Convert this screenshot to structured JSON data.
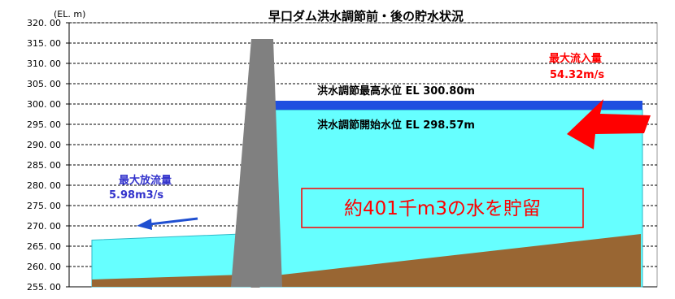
{
  "title": "早口ダム洪水調節前・後の貯水状況",
  "y_unit": "(EL. m)",
  "colors": {
    "water": "#66ffff",
    "water_border": "#2fb8c8",
    "flood_band": "#1f4fe0",
    "ground": "#996633",
    "dam": "#808080",
    "red": "#ff0000",
    "blue_text": "#3333cc",
    "outflow_arrow": "#1f4fd0"
  },
  "labels": {
    "max_water_level": "洪水調節最高水位 EL 300.80m",
    "start_water_level": "洪水調節開始水位 EL 298.57m",
    "max_inflow_title": "最大流入量",
    "max_inflow_value": "54.32m/s",
    "max_outflow_title": "最大放流量",
    "max_outflow_value": "5.98m3/s",
    "storage": "約401千m3の水を貯留"
  },
  "chart_data": {
    "type": "area",
    "title": "早口ダム洪水調節前・後の貯水状況",
    "ylabel": "(EL. m)",
    "ylim": [
      255,
      320
    ],
    "y_ticks": [
      "320. 00",
      "315. 00",
      "310. 00",
      "305. 00",
      "300. 00",
      "295. 00",
      "290. 00",
      "285. 00",
      "280. 00",
      "275. 00",
      "270. 00",
      "265. 00",
      "260. 00",
      "255. 00"
    ],
    "y_tick_values": [
      320,
      315,
      310,
      305,
      300,
      295,
      290,
      285,
      280,
      275,
      270,
      265,
      260,
      255
    ],
    "grid": true,
    "max_water_level": 300.8,
    "start_water_level": 298.57,
    "downstream_water_level": 266.5,
    "dam_crest": 316.0,
    "max_inflow": "54.32m/s",
    "max_outflow": "5.98m3/s",
    "storage": "約401千m3"
  }
}
